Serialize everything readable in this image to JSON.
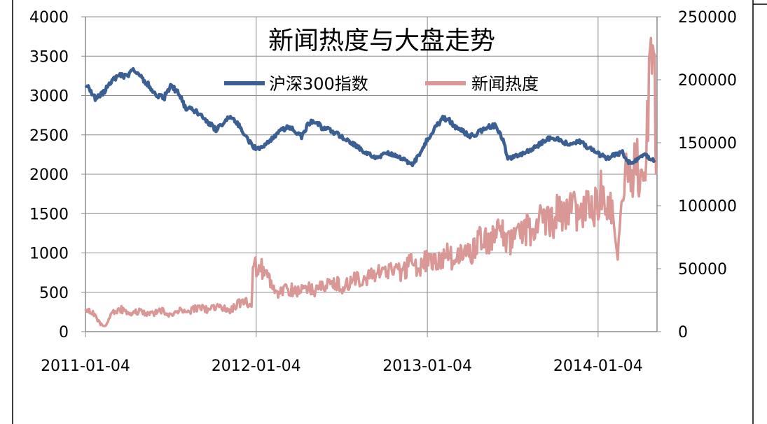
{
  "colors": {
    "series_index": "#3b5e93",
    "series_news": "#d99896",
    "grid": "#8c8c8c",
    "axis": "#8c8c8c",
    "frame": "#000000"
  },
  "chart_data": {
    "type": "line",
    "title": "新闻热度与大盘走势",
    "legend_position": "top-center",
    "grid": true,
    "x_tick_labels": [
      "2011-01-04",
      "2012-01-04",
      "2013-01-04",
      "2014-01-04"
    ],
    "xlim": [
      "2011-01-04",
      "2014-05-10"
    ],
    "y_left": {
      "ylim": [
        0,
        4000
      ],
      "ticks": [
        "0",
        "500",
        "1000",
        "1500",
        "2000",
        "2500",
        "3000",
        "3500",
        "4000"
      ]
    },
    "y_right": {
      "ylim": [
        0,
        250000
      ],
      "ticks": [
        "0",
        "50000",
        "100000",
        "150000",
        "200000",
        "250000"
      ]
    },
    "series": [
      {
        "name": "沪深300指数",
        "axis": "left",
        "points": [
          [
            "2011-01-04",
            3150
          ],
          [
            "2011-01-14",
            3050
          ],
          [
            "2011-01-25",
            2960
          ],
          [
            "2011-02-10",
            3020
          ],
          [
            "2011-02-28",
            3180
          ],
          [
            "2011-03-15",
            3250
          ],
          [
            "2011-03-31",
            3230
          ],
          [
            "2011-04-18",
            3320
          ],
          [
            "2011-05-03",
            3250
          ],
          [
            "2011-05-20",
            3120
          ],
          [
            "2011-06-05",
            3020
          ],
          [
            "2011-06-20",
            2960
          ],
          [
            "2011-07-05",
            3110
          ],
          [
            "2011-07-20",
            3050
          ],
          [
            "2011-08-05",
            2850
          ],
          [
            "2011-08-25",
            2810
          ],
          [
            "2011-09-15",
            2700
          ],
          [
            "2011-10-10",
            2570
          ],
          [
            "2011-10-25",
            2650
          ],
          [
            "2011-11-10",
            2750
          ],
          [
            "2011-11-25",
            2650
          ],
          [
            "2011-12-10",
            2500
          ],
          [
            "2011-12-30",
            2340
          ],
          [
            "2012-01-15",
            2330
          ],
          [
            "2012-02-01",
            2420
          ],
          [
            "2012-02-20",
            2520
          ],
          [
            "2012-03-10",
            2600
          ],
          [
            "2012-03-25",
            2560
          ],
          [
            "2012-04-10",
            2480
          ],
          [
            "2012-04-25",
            2640
          ],
          [
            "2012-05-08",
            2680
          ],
          [
            "2012-05-25",
            2580
          ],
          [
            "2012-06-10",
            2560
          ],
          [
            "2012-06-28",
            2500
          ],
          [
            "2012-07-15",
            2440
          ],
          [
            "2012-08-01",
            2380
          ],
          [
            "2012-08-20",
            2300
          ],
          [
            "2012-09-05",
            2240
          ],
          [
            "2012-09-20",
            2200
          ],
          [
            "2012-10-10",
            2280
          ],
          [
            "2012-10-25",
            2250
          ],
          [
            "2012-11-10",
            2200
          ],
          [
            "2012-11-25",
            2150
          ],
          [
            "2012-12-05",
            2130
          ],
          [
            "2012-12-20",
            2280
          ],
          [
            "2013-01-04",
            2450
          ],
          [
            "2013-01-20",
            2580
          ],
          [
            "2013-02-06",
            2720
          ],
          [
            "2013-02-20",
            2680
          ],
          [
            "2013-03-05",
            2600
          ],
          [
            "2013-03-20",
            2550
          ],
          [
            "2013-04-05",
            2480
          ],
          [
            "2013-04-20",
            2520
          ],
          [
            "2013-05-10",
            2600
          ],
          [
            "2013-05-30",
            2620
          ],
          [
            "2013-06-15",
            2430
          ],
          [
            "2013-06-25",
            2190
          ],
          [
            "2013-07-10",
            2230
          ],
          [
            "2013-07-25",
            2260
          ],
          [
            "2013-08-10",
            2300
          ],
          [
            "2013-08-25",
            2350
          ],
          [
            "2013-09-10",
            2420
          ],
          [
            "2013-09-25",
            2460
          ],
          [
            "2013-10-10",
            2440
          ],
          [
            "2013-10-25",
            2400
          ],
          [
            "2013-11-10",
            2380
          ],
          [
            "2013-11-25",
            2420
          ],
          [
            "2013-12-10",
            2350
          ],
          [
            "2013-12-25",
            2300
          ],
          [
            "2014-01-10",
            2240
          ],
          [
            "2014-01-25",
            2200
          ],
          [
            "2014-02-10",
            2250
          ],
          [
            "2014-02-25",
            2280
          ],
          [
            "2014-03-10",
            2150
          ],
          [
            "2014-03-25",
            2170
          ],
          [
            "2014-04-10",
            2260
          ],
          [
            "2014-04-25",
            2200
          ],
          [
            "2014-05-05",
            2180
          ]
        ]
      },
      {
        "name": "新闻热度",
        "axis": "right",
        "points": [
          [
            "2011-01-04",
            18000
          ],
          [
            "2011-01-20",
            15000
          ],
          [
            "2011-02-05",
            6000
          ],
          [
            "2011-02-15",
            4000
          ],
          [
            "2011-03-01",
            14000
          ],
          [
            "2011-03-20",
            18000
          ],
          [
            "2011-04-10",
            15000
          ],
          [
            "2011-05-01",
            16000
          ],
          [
            "2011-05-25",
            14000
          ],
          [
            "2011-06-15",
            17000
          ],
          [
            "2011-07-05",
            13000
          ],
          [
            "2011-07-25",
            18000
          ],
          [
            "2011-08-15",
            16000
          ],
          [
            "2011-09-05",
            20000
          ],
          [
            "2011-09-25",
            17000
          ],
          [
            "2011-10-15",
            21000
          ],
          [
            "2011-11-05",
            16000
          ],
          [
            "2011-11-25",
            22000
          ],
          [
            "2011-12-10",
            25000
          ],
          [
            "2011-12-25",
            18000
          ],
          [
            "2011-12-28",
            50000
          ],
          [
            "2012-01-10",
            52000
          ],
          [
            "2012-01-25",
            46000
          ],
          [
            "2012-02-05",
            40000
          ],
          [
            "2012-02-20",
            30000
          ],
          [
            "2012-03-10",
            34000
          ],
          [
            "2012-03-30",
            32000
          ],
          [
            "2012-04-20",
            34000
          ],
          [
            "2012-05-10",
            33000
          ],
          [
            "2012-06-01",
            36000
          ],
          [
            "2012-06-20",
            40000
          ],
          [
            "2012-07-10",
            34000
          ],
          [
            "2012-07-30",
            44000
          ],
          [
            "2012-08-20",
            42000
          ],
          [
            "2012-09-10",
            47000
          ],
          [
            "2012-09-30",
            45000
          ],
          [
            "2012-10-20",
            50000
          ],
          [
            "2012-11-10",
            46000
          ],
          [
            "2012-11-30",
            55000
          ],
          [
            "2012-12-20",
            50000
          ],
          [
            "2013-01-04",
            58000
          ],
          [
            "2013-01-25",
            55000
          ],
          [
            "2013-02-10",
            62000
          ],
          [
            "2013-03-01",
            57000
          ],
          [
            "2013-03-20",
            63000
          ],
          [
            "2013-04-05",
            60000
          ],
          [
            "2013-04-20",
            70000
          ],
          [
            "2013-05-05",
            75000
          ],
          [
            "2013-05-20",
            72000
          ],
          [
            "2013-06-10",
            80000
          ],
          [
            "2013-06-25",
            68000
          ],
          [
            "2013-07-10",
            75000
          ],
          [
            "2013-07-30",
            82000
          ],
          [
            "2013-08-20",
            78000
          ],
          [
            "2013-09-10",
            92000
          ],
          [
            "2013-09-25",
            84000
          ],
          [
            "2013-10-10",
            96000
          ],
          [
            "2013-10-25",
            88000
          ],
          [
            "2013-11-10",
            100000
          ],
          [
            "2013-11-25",
            92000
          ],
          [
            "2013-12-10",
            104000
          ],
          [
            "2013-12-25",
            96000
          ],
          [
            "2014-01-10",
            110000
          ],
          [
            "2014-01-25",
            105000
          ],
          [
            "2014-02-05",
            100000
          ],
          [
            "2014-02-15",
            65000
          ],
          [
            "2014-02-25",
            100000
          ],
          [
            "2014-03-05",
            125000
          ],
          [
            "2014-03-15",
            115000
          ],
          [
            "2014-03-25",
            140000
          ],
          [
            "2014-04-05",
            118000
          ],
          [
            "2014-04-15",
            130000
          ],
          [
            "2014-04-25",
            210000
          ],
          [
            "2014-05-05",
            190000
          ],
          [
            "2014-05-08",
            125000
          ]
        ]
      }
    ]
  }
}
